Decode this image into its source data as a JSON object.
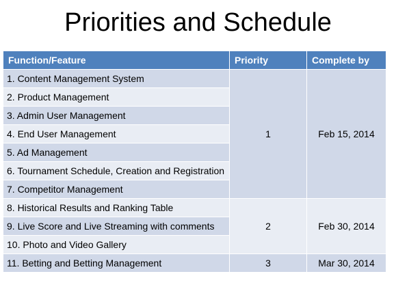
{
  "title": "Priorities and Schedule",
  "columns": [
    "Function/Feature",
    "Priority",
    "Complete by"
  ],
  "features": [
    "1. Content Management System",
    "2. Product Management",
    "3. Admin User Management",
    "4. End User Management",
    "5. Ad Management",
    "6. Tournament Schedule, Creation and Registration",
    "7. Competitor Management",
    "8. Historical Results and Ranking Table",
    "9. Live Score and Live Streaming with comments",
    "10. Photo and Video Gallery",
    "11. Betting and Betting Management"
  ],
  "groups": [
    {
      "priority": "1",
      "complete_by": "Feb 15, 2014"
    },
    {
      "priority": "2",
      "complete_by": "Feb 30, 2014"
    },
    {
      "priority": "3",
      "complete_by": "Mar 30, 2014"
    }
  ],
  "colors": {
    "header": "#4f81bd",
    "row_dark": "#d0d8e8",
    "row_light": "#e9edf4"
  }
}
